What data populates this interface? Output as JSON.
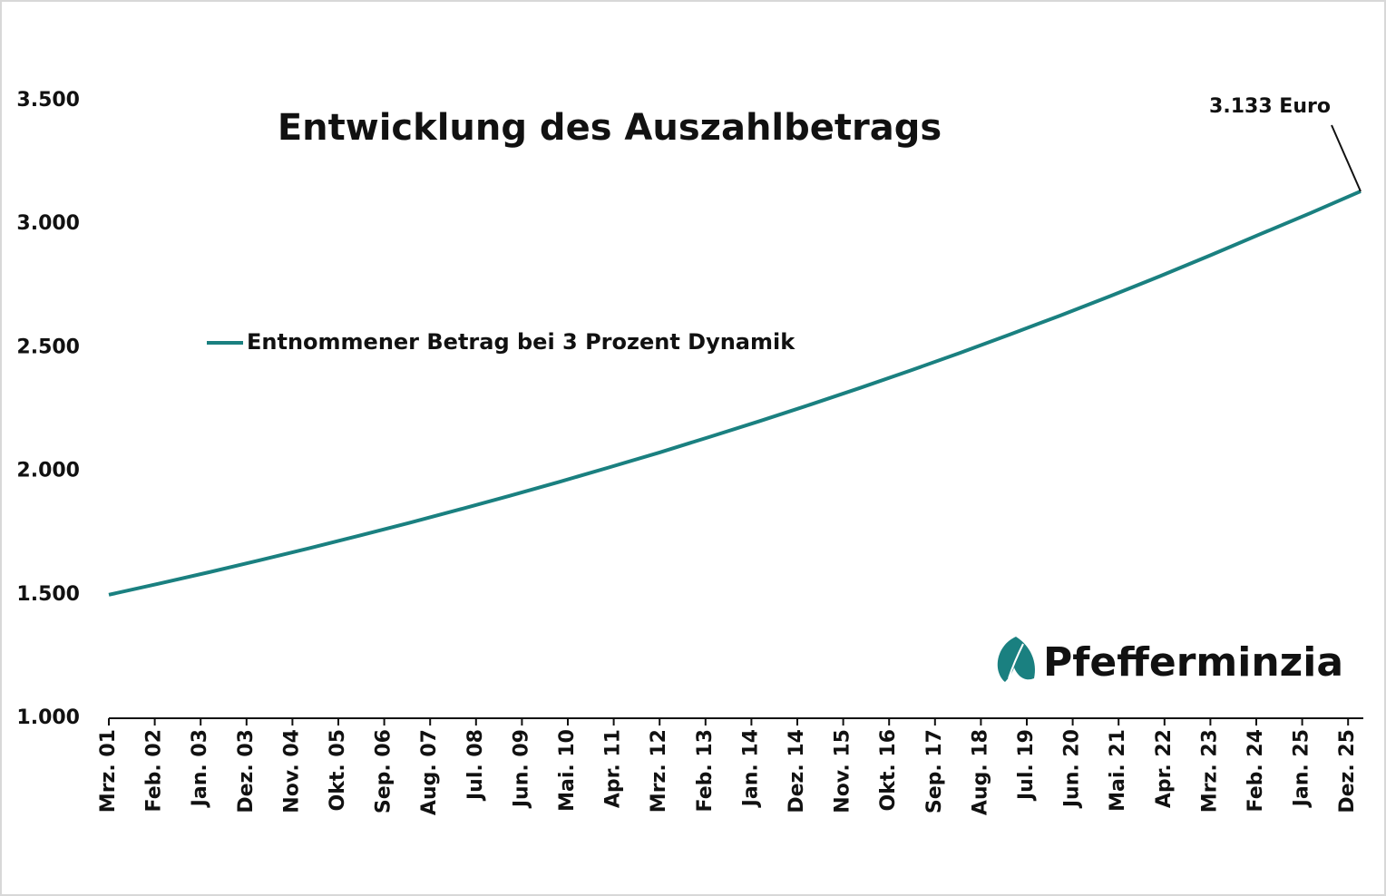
{
  "chart_data": {
    "type": "line",
    "title": "Entwicklung des Auszahlbetrags",
    "x": [
      0,
      12,
      24,
      36,
      48,
      60,
      72,
      84,
      96,
      108,
      120,
      132,
      144,
      156,
      168,
      180,
      192,
      204,
      216,
      228,
      240,
      252,
      264,
      276,
      288,
      300
    ],
    "series": [
      {
        "name": "Entnommener Betrag bei 3 Prozent Dynamik",
        "color": "#1a8080",
        "values": [
          1500,
          1545,
          1591,
          1639,
          1688,
          1739,
          1791,
          1845,
          1900,
          1957,
          2016,
          2076,
          2139,
          2203,
          2269,
          2337,
          2407,
          2479,
          2554,
          2630,
          2709,
          2790,
          2874,
          2960,
          3045,
          3133
        ]
      }
    ],
    "xlim": [
      0,
      300
    ],
    "xticks": [
      {
        "value": 0,
        "label": "Mrz. 01"
      },
      {
        "value": 11,
        "label": "Feb. 02"
      },
      {
        "value": 22,
        "label": "Jan. 03"
      },
      {
        "value": 33,
        "label": "Dez. 03"
      },
      {
        "value": 44,
        "label": "Nov. 04"
      },
      {
        "value": 55,
        "label": "Okt. 05"
      },
      {
        "value": 66,
        "label": "Sep. 06"
      },
      {
        "value": 77,
        "label": "Aug. 07"
      },
      {
        "value": 88,
        "label": "Jul. 08"
      },
      {
        "value": 99,
        "label": "Jun. 09"
      },
      {
        "value": 110,
        "label": "Mai. 10"
      },
      {
        "value": 121,
        "label": "Apr. 11"
      },
      {
        "value": 132,
        "label": "Mrz. 12"
      },
      {
        "value": 143,
        "label": "Feb. 13"
      },
      {
        "value": 154,
        "label": "Jan. 14"
      },
      {
        "value": 165,
        "label": "Dez. 14"
      },
      {
        "value": 176,
        "label": "Nov. 15"
      },
      {
        "value": 187,
        "label": "Okt. 16"
      },
      {
        "value": 198,
        "label": "Sep. 17"
      },
      {
        "value": 209,
        "label": "Aug. 18"
      },
      {
        "value": 220,
        "label": "Jul. 19"
      },
      {
        "value": 231,
        "label": "Jun. 20"
      },
      {
        "value": 242,
        "label": "Mai. 21"
      },
      {
        "value": 253,
        "label": "Apr. 22"
      },
      {
        "value": 264,
        "label": "Mrz. 23"
      },
      {
        "value": 275,
        "label": "Feb. 24"
      },
      {
        "value": 286,
        "label": "Jan. 25"
      },
      {
        "value": 297,
        "label": "Dez. 25"
      }
    ],
    "ylim": [
      1000,
      3500
    ],
    "yticks": [
      {
        "value": 1000,
        "label": "1.000"
      },
      {
        "value": 1500,
        "label": "1.500"
      },
      {
        "value": 2000,
        "label": "2.000"
      },
      {
        "value": 2500,
        "label": "2.500"
      },
      {
        "value": 3000,
        "label": "3.000"
      },
      {
        "value": 3500,
        "label": "3.500"
      }
    ],
    "annotation": "3.133 Euro",
    "legend": "upper-left",
    "grid": false
  },
  "logo": "Pfefferminzia"
}
